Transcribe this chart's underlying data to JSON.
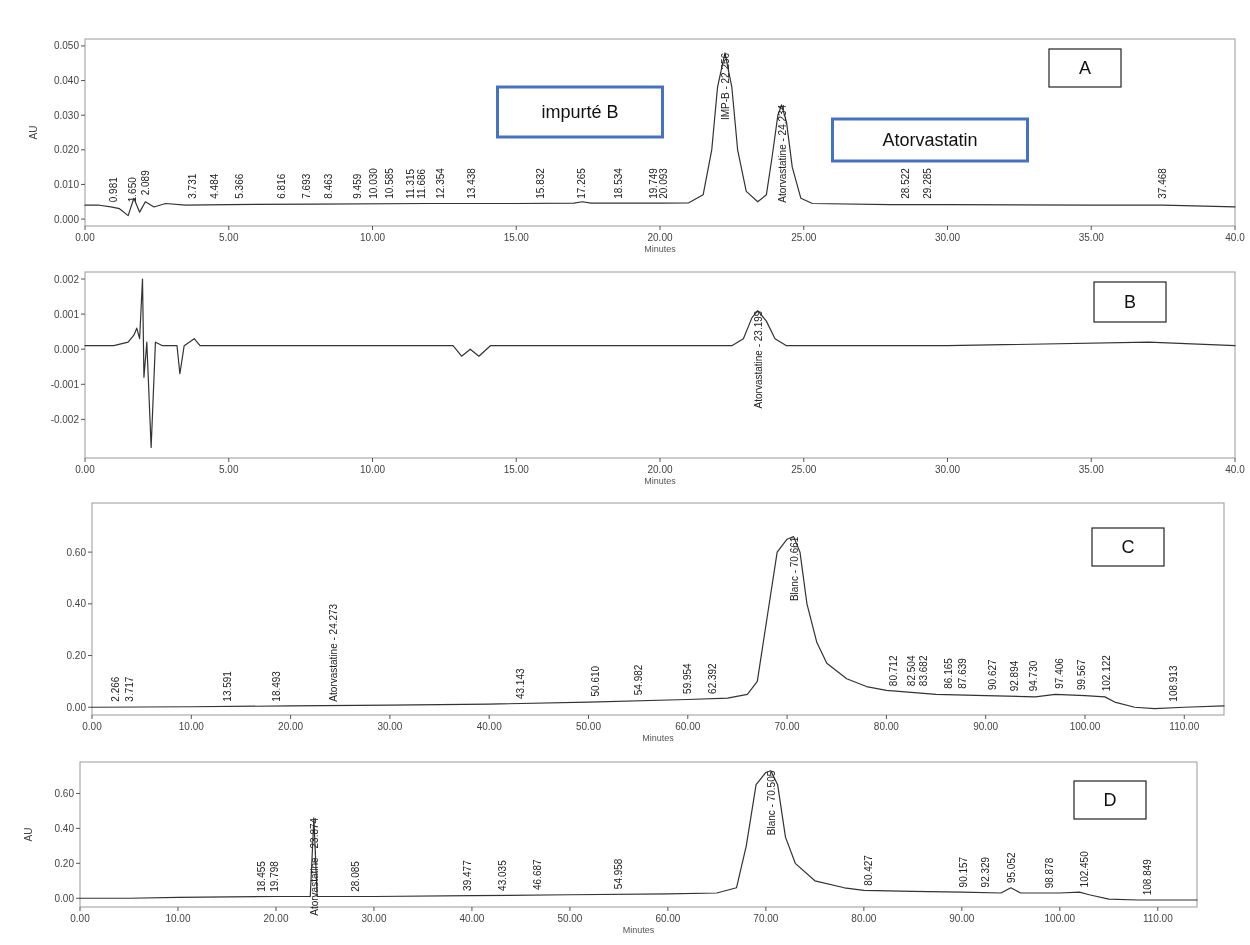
{
  "chart_data": [
    {
      "type": "line",
      "xlabel": "Minutes",
      "ylabel": "AU",
      "xlim": [
        0,
        40
      ],
      "ylim": [
        -0.002,
        0.052
      ],
      "xticks": [
        {
          "value": 0,
          "label": "0.00"
        },
        {
          "value": 5,
          "label": "5.00"
        },
        {
          "value": 10,
          "label": "10.00"
        },
        {
          "value": 15,
          "label": "15.00"
        },
        {
          "value": 20,
          "label": "20.00"
        },
        {
          "value": 25,
          "label": "25.00"
        },
        {
          "value": 30,
          "label": "30.00"
        },
        {
          "value": 35,
          "label": "35.00"
        },
        {
          "value": 40,
          "label": "40.0"
        }
      ],
      "yticks": [
        {
          "value": 0,
          "label": "0.000"
        },
        {
          "value": 0.01,
          "label": "0.010"
        },
        {
          "value": 0.02,
          "label": "0.020"
        },
        {
          "value": 0.03,
          "label": "0.030"
        },
        {
          "value": 0.04,
          "label": "0.040"
        },
        {
          "value": 0.05,
          "label": "0.050"
        }
      ],
      "series": [
        {
          "color": "#333333",
          "x": [
            0,
            0.5,
            0.9,
            1.2,
            1.5,
            1.7,
            1.9,
            2.1,
            2.4,
            2.8,
            3.5,
            5,
            8,
            12,
            15,
            17,
            17.3,
            17.6,
            20,
            21,
            21.5,
            21.8,
            22,
            22.26,
            22.5,
            22.7,
            23,
            23.4,
            23.7,
            23.9,
            24.1,
            24.23,
            24.4,
            24.6,
            24.9,
            25.3,
            28,
            30,
            35,
            37.5,
            40
          ],
          "values": [
            0.004,
            0.004,
            0.0035,
            0.003,
            0.001,
            0.006,
            0.002,
            0.005,
            0.0035,
            0.0045,
            0.004,
            0.0042,
            0.0043,
            0.0045,
            0.0045,
            0.0046,
            0.005,
            0.0046,
            0.0046,
            0.0047,
            0.007,
            0.02,
            0.038,
            0.048,
            0.038,
            0.02,
            0.008,
            0.005,
            0.007,
            0.018,
            0.03,
            0.033,
            0.028,
            0.015,
            0.006,
            0.0045,
            0.0042,
            0.0042,
            0.004,
            0.004,
            0.0035
          ]
        }
      ],
      "annotations": [
        "A",
        "impurté B",
        "Atorvastatin",
        {
          "text": "0.981",
          "x": 0.981,
          "y": 0.004
        },
        {
          "text": "1.650",
          "x": 1.65,
          "y": 0.004
        },
        {
          "text": "2.089",
          "x": 2.089,
          "y": 0.006
        },
        {
          "text": "3.731",
          "x": 3.731,
          "y": 0.005
        },
        {
          "text": "4.484",
          "x": 4.484,
          "y": 0.005
        },
        {
          "text": "5.366",
          "x": 5.366,
          "y": 0.005
        },
        {
          "text": "6.816",
          "x": 6.816,
          "y": 0.005
        },
        {
          "text": "7.693",
          "x": 7.693,
          "y": 0.005
        },
        {
          "text": "8.463",
          "x": 8.463,
          "y": 0.005
        },
        {
          "text": "9.459",
          "x": 9.459,
          "y": 0.005
        },
        {
          "text": "10.030",
          "x": 10.03,
          "y": 0.005
        },
        {
          "text": "10.585",
          "x": 10.585,
          "y": 0.005
        },
        {
          "text": "11.315",
          "x": 11.315,
          "y": 0.005
        },
        {
          "text": "11.686",
          "x": 11.686,
          "y": 0.005
        },
        {
          "text": "12.354",
          "x": 12.354,
          "y": 0.005
        },
        {
          "text": "13.438",
          "x": 13.438,
          "y": 0.005
        },
        {
          "text": "15.832",
          "x": 15.832,
          "y": 0.005
        },
        {
          "text": "17.265",
          "x": 17.265,
          "y": 0.005
        },
        {
          "text": "18.534",
          "x": 18.534,
          "y": 0.005
        },
        {
          "text": "19.749",
          "x": 19.749,
          "y": 0.005
        },
        {
          "text": "20.093",
          "x": 20.093,
          "y": 0.005
        },
        {
          "text": "IMP-B - 22.256",
          "x": 22.256,
          "y": 0.048
        },
        {
          "text": "Atorvastatine - 24.234",
          "x": 24.234,
          "y": 0.033
        },
        {
          "text": "28.522",
          "x": 28.522,
          "y": 0.005
        },
        {
          "text": "29.285",
          "x": 29.285,
          "y": 0.005
        },
        {
          "text": "37.468",
          "x": 37.468,
          "y": 0.005
        }
      ]
    },
    {
      "type": "line",
      "xlabel": "Minutes",
      "xlim": [
        0,
        40
      ],
      "ylim": [
        -0.0031,
        0.0022
      ],
      "xticks": [
        {
          "value": 0,
          "label": "0.00"
        },
        {
          "value": 5,
          "label": "5.00"
        },
        {
          "value": 10,
          "label": "10.00"
        },
        {
          "value": 15,
          "label": "15.00"
        },
        {
          "value": 20,
          "label": "20.00"
        },
        {
          "value": 25,
          "label": "25.00"
        },
        {
          "value": 30,
          "label": "30.00"
        },
        {
          "value": 35,
          "label": "35.00"
        },
        {
          "value": 40,
          "label": "40.0"
        }
      ],
      "yticks": [
        {
          "value": -0.002,
          "label": "-0.002"
        },
        {
          "value": -0.001,
          "label": "-0.001"
        },
        {
          "value": 0,
          "label": "0.000"
        },
        {
          "value": 0.001,
          "label": "0.001"
        },
        {
          "value": 0.002,
          "label": "0.002"
        }
      ],
      "series": [
        {
          "color": "#333333",
          "x": [
            0,
            0.5,
            1,
            1.5,
            1.7,
            1.8,
            1.9,
            2,
            2.05,
            2.15,
            2.3,
            2.45,
            2.7,
            3.2,
            3.3,
            3.45,
            3.8,
            4,
            6,
            10,
            12.8,
            13.1,
            13.4,
            13.7,
            14.1,
            18,
            22.5,
            22.9,
            23.2,
            23.4,
            23.7,
            24,
            24.4,
            30,
            37,
            40
          ],
          "values": [
            0.0001,
            0.0001,
            0.0001,
            0.0002,
            0.0004,
            0.0006,
            0.0003,
            0.002,
            -0.0008,
            0.0002,
            -0.0028,
            0.0002,
            0.0001,
            0.0001,
            -0.0007,
            0.0001,
            0.0003,
            0.0001,
            0.0001,
            0.0001,
            0.0001,
            -0.0002,
            0,
            -0.0002,
            0.0001,
            0.0001,
            0.0001,
            0.0003,
            0.0009,
            0.0011,
            0.0008,
            0.0003,
            0.0001,
            0.0001,
            0.0002,
            0.0001
          ]
        }
      ],
      "annotations": [
        "B",
        {
          "text": "Atorvastatine - 23.199",
          "x": 23.4,
          "y": 0.0011
        }
      ]
    },
    {
      "type": "line",
      "xlabel": "Minutes",
      "xlim": [
        0,
        114
      ],
      "ylim": [
        -0.03,
        0.79
      ],
      "xticks": [
        {
          "value": 0,
          "label": "0.00"
        },
        {
          "value": 10,
          "label": "10.00"
        },
        {
          "value": 20,
          "label": "20.00"
        },
        {
          "value": 30,
          "label": "30.00"
        },
        {
          "value": 40,
          "label": "40.00"
        },
        {
          "value": 50,
          "label": "50.00"
        },
        {
          "value": 60,
          "label": "60.00"
        },
        {
          "value": 70,
          "label": "70.00"
        },
        {
          "value": 80,
          "label": "80.00"
        },
        {
          "value": 90,
          "label": "90.00"
        },
        {
          "value": 100,
          "label": "100.00"
        },
        {
          "value": 110,
          "label": "110.00"
        }
      ],
      "yticks": [
        {
          "value": 0,
          "label": "0.00"
        },
        {
          "value": 0.2,
          "label": "0.20"
        },
        {
          "value": 0.4,
          "label": "0.40"
        },
        {
          "value": 0.6,
          "label": "0.60"
        }
      ],
      "series": [
        {
          "color": "#333333",
          "x": [
            0,
            10,
            20,
            30,
            40,
            50,
            60,
            64,
            66,
            67,
            68,
            69,
            70,
            70.66,
            71.3,
            72,
            73,
            74,
            76,
            78,
            80,
            85,
            90,
            95,
            97,
            100,
            102,
            103,
            105,
            107,
            110,
            114
          ],
          "values": [
            0,
            0.002,
            0.005,
            0.008,
            0.012,
            0.02,
            0.03,
            0.035,
            0.05,
            0.1,
            0.35,
            0.6,
            0.65,
            0.66,
            0.6,
            0.4,
            0.25,
            0.17,
            0.11,
            0.08,
            0.065,
            0.05,
            0.045,
            0.04,
            0.05,
            0.045,
            0.04,
            0.02,
            0,
            -0.005,
            0,
            0.005
          ]
        }
      ],
      "annotations": [
        "C",
        {
          "text": "2.266",
          "x": 2.266,
          "y": 0.01
        },
        {
          "text": "3.717",
          "x": 3.717,
          "y": 0.01
        },
        {
          "text": "13.591",
          "x": 13.591,
          "y": 0.01
        },
        {
          "text": "18.493",
          "x": 18.493,
          "y": 0.01
        },
        {
          "text": "Atorvastatine - 24.273",
          "x": 24.273,
          "y": 0.01
        },
        {
          "text": "43.143",
          "x": 43.143,
          "y": 0.02
        },
        {
          "text": "50.610",
          "x": 50.61,
          "y": 0.03
        },
        {
          "text": "54.982",
          "x": 54.982,
          "y": 0.035
        },
        {
          "text": "59.954",
          "x": 59.954,
          "y": 0.04
        },
        {
          "text": "62.392",
          "x": 62.392,
          "y": 0.04
        },
        {
          "text": "Blanc - 70.661",
          "x": 70.66,
          "y": 0.66
        },
        {
          "text": "80.712",
          "x": 80.712,
          "y": 0.07
        },
        {
          "text": "82.504",
          "x": 82.504,
          "y": 0.07
        },
        {
          "text": "83.682",
          "x": 83.682,
          "y": 0.07
        },
        {
          "text": "86.165",
          "x": 86.165,
          "y": 0.06
        },
        {
          "text": "87.639",
          "x": 87.639,
          "y": 0.06
        },
        {
          "text": "90.627",
          "x": 90.627,
          "y": 0.055
        },
        {
          "text": "92.894",
          "x": 92.894,
          "y": 0.05
        },
        {
          "text": "94.730",
          "x": 94.73,
          "y": 0.05
        },
        {
          "text": "97.406",
          "x": 97.406,
          "y": 0.06
        },
        {
          "text": "99.567",
          "x": 99.567,
          "y": 0.055
        },
        {
          "text": "102.122",
          "x": 102.122,
          "y": 0.05
        },
        {
          "text": "108.913",
          "x": 108.913,
          "y": 0.01
        }
      ]
    },
    {
      "type": "line",
      "xlabel": "Minutes",
      "ylabel": "AU",
      "xlim": [
        0,
        114
      ],
      "ylim": [
        -0.05,
        0.78
      ],
      "xticks": [
        {
          "value": 0,
          "label": "0.00"
        },
        {
          "value": 10,
          "label": "10.00"
        },
        {
          "value": 20,
          "label": "20.00"
        },
        {
          "value": 30,
          "label": "30.00"
        },
        {
          "value": 40,
          "label": "40.00"
        },
        {
          "value": 50,
          "label": "50.00"
        },
        {
          "value": 60,
          "label": "60.00"
        },
        {
          "value": 70,
          "label": "70.00"
        },
        {
          "value": 80,
          "label": "80.00"
        },
        {
          "value": 90,
          "label": "90.00"
        },
        {
          "value": 100,
          "label": "100.00"
        },
        {
          "value": 110,
          "label": "110.00"
        }
      ],
      "yticks": [
        {
          "value": 0,
          "label": "0.00"
        },
        {
          "value": 0.2,
          "label": "0.20"
        },
        {
          "value": 0.4,
          "label": "0.40"
        },
        {
          "value": 0.6,
          "label": "0.60"
        }
      ],
      "series": [
        {
          "color": "#333333",
          "x": [
            0,
            5,
            10,
            20,
            23.5,
            23.87,
            24.2,
            30,
            40,
            50,
            60,
            65,
            67,
            68,
            69,
            70,
            70.5,
            71.2,
            72,
            73,
            75,
            78,
            80,
            85,
            90,
            94,
            95,
            96,
            100,
            102,
            103,
            105,
            108,
            114
          ],
          "values": [
            0,
            0,
            0.005,
            0.01,
            0.01,
            0.46,
            0.01,
            0.01,
            0.015,
            0.02,
            0.025,
            0.03,
            0.06,
            0.3,
            0.65,
            0.72,
            0.73,
            0.65,
            0.35,
            0.2,
            0.1,
            0.06,
            0.045,
            0.04,
            0.035,
            0.03,
            0.06,
            0.03,
            0.03,
            0.035,
            0.02,
            -0.005,
            -0.01,
            -0.01
          ]
        }
      ],
      "annotations": [
        "D",
        {
          "text": "18.455",
          "x": 18.455,
          "y": 0.02
        },
        {
          "text": "19.798",
          "x": 19.798,
          "y": 0.02
        },
        {
          "text": "Atorvastatine - 23.874",
          "x": 23.874,
          "y": 0.46
        },
        {
          "text": "28.085",
          "x": 28.085,
          "y": 0.02
        },
        {
          "text": "39.477",
          "x": 39.477,
          "y": 0.025
        },
        {
          "text": "43.035",
          "x": 43.035,
          "y": 0.025
        },
        {
          "text": "46.687",
          "x": 46.687,
          "y": 0.03
        },
        {
          "text": "54.958",
          "x": 54.958,
          "y": 0.035
        },
        {
          "text": "Blanc - 70.505",
          "x": 70.505,
          "y": 0.73
        },
        {
          "text": "80.427",
          "x": 80.427,
          "y": 0.055
        },
        {
          "text": "90.157",
          "x": 90.157,
          "y": 0.045
        },
        {
          "text": "92.329",
          "x": 92.329,
          "y": 0.045
        },
        {
          "text": "95.052",
          "x": 95.052,
          "y": 0.07
        },
        {
          "text": "98.878",
          "x": 98.878,
          "y": 0.04
        },
        {
          "text": "102.450",
          "x": 102.45,
          "y": 0.045
        },
        {
          "text": "108.849",
          "x": 108.849,
          "y": 0.0
        }
      ]
    }
  ]
}
